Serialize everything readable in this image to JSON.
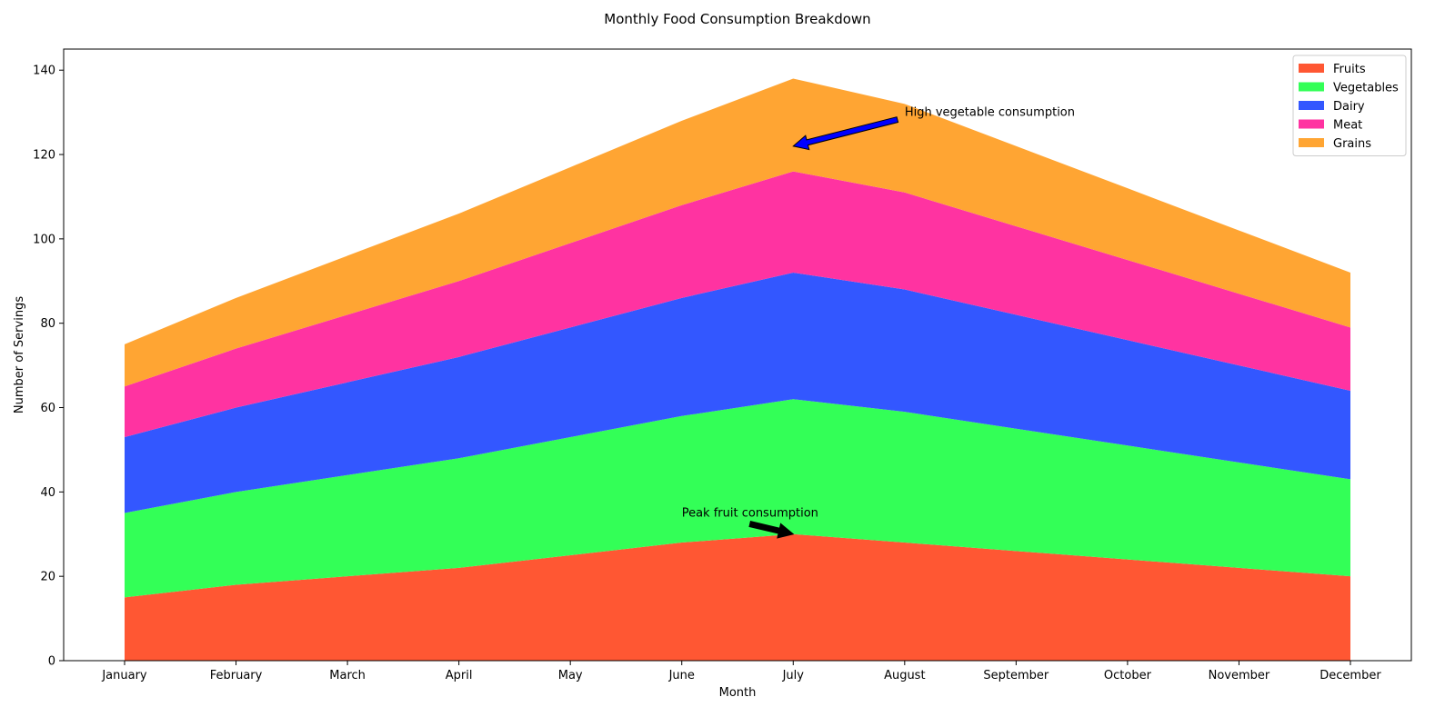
{
  "chart_data": {
    "type": "area",
    "stacked": true,
    "title": "Monthly Food Consumption Breakdown",
    "xlabel": "Month",
    "ylabel": "Number of Servings",
    "categories": [
      "January",
      "February",
      "March",
      "April",
      "May",
      "June",
      "July",
      "August",
      "September",
      "October",
      "November",
      "December"
    ],
    "ylim": [
      0,
      145
    ],
    "yticks": [
      0,
      20,
      40,
      60,
      80,
      100,
      120,
      140
    ],
    "grid": false,
    "legend_position": "top-right",
    "series": [
      {
        "name": "Fruits",
        "color": "#FF5733",
        "values": [
          15,
          18,
          20,
          22,
          25,
          28,
          30,
          28,
          26,
          24,
          22,
          20
        ]
      },
      {
        "name": "Vegetables",
        "color": "#33FF57",
        "values": [
          20,
          22,
          24,
          26,
          28,
          30,
          32,
          31,
          29,
          27,
          25,
          23
        ]
      },
      {
        "name": "Dairy",
        "color": "#3357FF",
        "values": [
          18,
          20,
          22,
          24,
          26,
          28,
          30,
          29,
          27,
          25,
          23,
          21
        ]
      },
      {
        "name": "Meat",
        "color": "#FF33A1",
        "values": [
          12,
          14,
          16,
          18,
          20,
          22,
          24,
          23,
          21,
          19,
          17,
          15
        ]
      },
      {
        "name": "Grains",
        "color": "#FFA533",
        "values": [
          10,
          12,
          14,
          16,
          18,
          20,
          22,
          21,
          19,
          17,
          15,
          13
        ]
      }
    ],
    "annotations": [
      {
        "text": "Peak fruit consumption",
        "point_category": "July",
        "point_y": 30,
        "text_category_offset": -1.0,
        "text_y": 35,
        "arrow_color": "#000000"
      },
      {
        "text": "High vegetable consumption",
        "point_category": "July",
        "point_y": 122,
        "text_category_offset": 1.0,
        "text_y": 130,
        "arrow_color": "#0000FF"
      }
    ]
  }
}
